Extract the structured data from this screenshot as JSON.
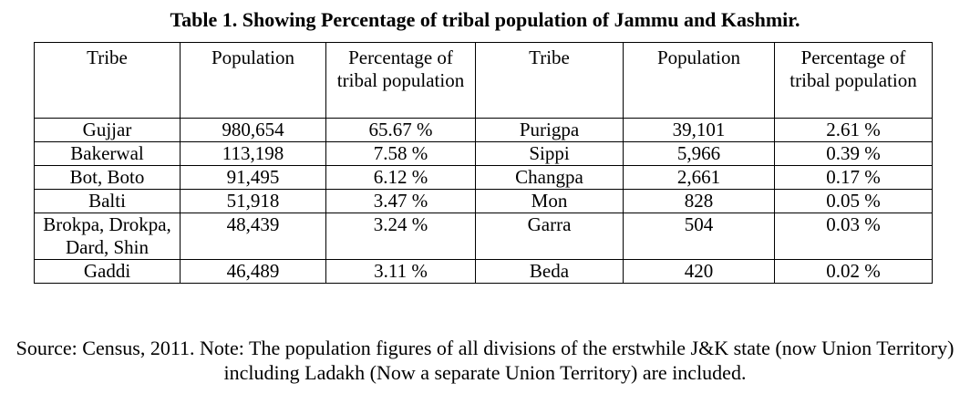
{
  "caption": "Table 1. Showing Percentage of tribal population of Jammu and Kashmir.",
  "table": {
    "headers": [
      "Tribe",
      "Population",
      "Percentage of tribal population",
      "Tribe",
      "Population",
      "Percentage of tribal population"
    ],
    "rows": [
      [
        "Gujjar",
        "980,654",
        "65.67 %",
        "Purigpa",
        "39,101",
        "2.61 %"
      ],
      [
        "Bakerwal",
        "113,198",
        "7.58 %",
        "Sippi",
        "5,966",
        "0.39 %"
      ],
      [
        "Bot, Boto",
        "91,495",
        "6.12 %",
        "Changpa",
        "2,661",
        "0.17 %"
      ],
      [
        "Balti",
        "51,918",
        "3.47 %",
        "Mon",
        "828",
        "0.05 %"
      ],
      [
        "Brokpa, Drokpa, Dard, Shin",
        "48,439",
        "3.24 %",
        "Garra",
        "504",
        "0.03 %"
      ],
      [
        "Gaddi",
        "46,489",
        "3.11 %",
        "Beda",
        "420",
        "0.02 %"
      ]
    ]
  },
  "source_note": "Source: Census, 2011. Note: The population figures of all divisions of the erstwhile J&K state (now Union Territory) including Ladakh (Now a separate Union Territory) are included."
}
